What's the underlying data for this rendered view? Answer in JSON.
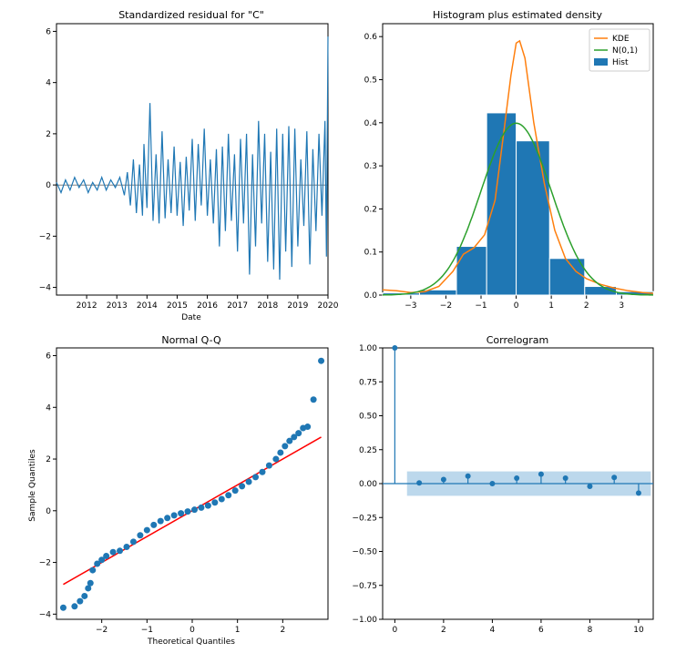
{
  "colors": {
    "blue": "#1f77b4",
    "orange": "#ff7f0e",
    "green": "#2ca02c",
    "red": "#ff0000",
    "band": "#a6cbe6"
  },
  "chart_data": [
    {
      "id": "residual",
      "type": "line",
      "title": "Standardized residual for \"C\"",
      "xlabel": "Date",
      "ylabel": "",
      "xlim": [
        2011.0,
        2020.0
      ],
      "ylim": [
        -4.3,
        6.3
      ],
      "xticks": [
        2012,
        2013,
        2014,
        2015,
        2016,
        2017,
        2018,
        2019,
        2020
      ],
      "yticks": [
        -4,
        -2,
        0,
        2,
        4,
        6
      ],
      "series": [
        {
          "x": [
            2011.0,
            2011.15,
            2011.3,
            2011.45,
            2011.6,
            2011.75,
            2011.9,
            2012.05,
            2012.2,
            2012.35,
            2012.5,
            2012.65,
            2012.8,
            2012.95,
            2013.1,
            2013.25,
            2013.35,
            2013.45,
            2013.55,
            2013.65,
            2013.75,
            2013.85,
            2013.9,
            2014.0,
            2014.1,
            2014.2,
            2014.3,
            2014.4,
            2014.5,
            2014.6,
            2014.7,
            2014.8,
            2014.9,
            2015.0,
            2015.1,
            2015.2,
            2015.3,
            2015.4,
            2015.5,
            2015.6,
            2015.7,
            2015.8,
            2015.9,
            2016.0,
            2016.1,
            2016.2,
            2016.3,
            2016.4,
            2016.5,
            2016.6,
            2016.7,
            2016.8,
            2016.9,
            2017.0,
            2017.1,
            2017.2,
            2017.3,
            2017.4,
            2017.5,
            2017.6,
            2017.7,
            2017.8,
            2017.9,
            2018.0,
            2018.1,
            2018.2,
            2018.3,
            2018.4,
            2018.5,
            2018.6,
            2018.7,
            2018.8,
            2018.9,
            2019.0,
            2019.1,
            2019.2,
            2019.3,
            2019.4,
            2019.5,
            2019.6,
            2019.7,
            2019.8,
            2019.9,
            2019.95,
            2020.0
          ],
          "y": [
            0.1,
            -0.3,
            0.2,
            -0.2,
            0.3,
            -0.1,
            0.2,
            -0.3,
            0.1,
            -0.2,
            0.3,
            -0.2,
            0.2,
            -0.1,
            0.3,
            -0.4,
            0.5,
            -0.8,
            1.0,
            -1.1,
            0.8,
            -1.2,
            1.6,
            -0.9,
            3.2,
            -1.4,
            1.2,
            -1.5,
            2.1,
            -1.3,
            1.0,
            -1.1,
            1.5,
            -1.2,
            0.9,
            -1.6,
            1.1,
            -1.0,
            1.8,
            -1.4,
            1.6,
            -0.8,
            2.2,
            -1.2,
            1.0,
            -1.5,
            1.4,
            -2.4,
            1.5,
            -1.8,
            2.0,
            -1.4,
            1.2,
            -2.6,
            1.8,
            -1.5,
            2.0,
            -3.5,
            1.2,
            -2.4,
            2.5,
            -1.5,
            2.0,
            -3.0,
            1.3,
            -3.3,
            2.2,
            -3.7,
            2.0,
            -2.6,
            2.3,
            -3.2,
            2.2,
            -2.4,
            1.0,
            -1.6,
            2.1,
            -3.1,
            1.4,
            -1.8,
            2.0,
            -1.2,
            2.5,
            -2.8,
            5.8
          ]
        }
      ]
    },
    {
      "id": "histogram",
      "type": "bar",
      "title": "Histogram plus estimated density",
      "xlim": [
        -3.8,
        3.9
      ],
      "ylim": [
        0,
        0.63
      ],
      "xticks": [
        -3,
        -2,
        -1,
        0,
        1,
        2,
        3
      ],
      "yticks": [
        0.0,
        0.1,
        0.2,
        0.3,
        0.4,
        0.5,
        0.6
      ],
      "legend": {
        "position": "top-right",
        "entries": [
          "KDE",
          "N(0,1)",
          "Hist"
        ]
      },
      "bars": {
        "edges": [
          -3.8,
          -2.75,
          -1.7,
          -0.84,
          0.0,
          0.95,
          1.95,
          2.85,
          3.9
        ],
        "heights": [
          0.005,
          0.012,
          0.113,
          0.423,
          0.358,
          0.085,
          0.02,
          0.008
        ]
      },
      "kde": {
        "name": "KDE",
        "x": [
          -3.8,
          -3.4,
          -3.0,
          -2.6,
          -2.2,
          -1.8,
          -1.5,
          -1.2,
          -0.9,
          -0.6,
          -0.35,
          -0.15,
          0.0,
          0.1,
          0.25,
          0.5,
          0.8,
          1.1,
          1.4,
          1.7,
          2.0,
          2.4,
          2.8,
          3.2,
          3.6,
          3.9
        ],
        "y": [
          0.012,
          0.01,
          0.006,
          0.008,
          0.02,
          0.055,
          0.095,
          0.11,
          0.14,
          0.22,
          0.38,
          0.51,
          0.585,
          0.59,
          0.55,
          0.4,
          0.26,
          0.15,
          0.085,
          0.055,
          0.038,
          0.025,
          0.016,
          0.01,
          0.006,
          0.004
        ]
      },
      "normal": {
        "name": "N(0,1)",
        "mean": 0,
        "std": 1
      }
    },
    {
      "id": "qq",
      "type": "scatter",
      "title": "Normal Q-Q",
      "xlabel": "Theoretical Quantiles",
      "ylabel": "Sample Quantiles",
      "xlim": [
        -3.0,
        3.0
      ],
      "ylim": [
        -4.2,
        6.3
      ],
      "xticks": [
        -2,
        -1,
        0,
        1,
        2
      ],
      "yticks": [
        -4,
        -2,
        0,
        2,
        4,
        6
      ],
      "points": {
        "x": [
          -2.85,
          -2.6,
          -2.48,
          -2.38,
          -2.3,
          -2.25,
          -2.2,
          -2.1,
          -2.0,
          -1.9,
          -1.75,
          -1.6,
          -1.45,
          -1.3,
          -1.15,
          -1.0,
          -0.85,
          -0.7,
          -0.55,
          -0.4,
          -0.25,
          -0.1,
          0.05,
          0.2,
          0.35,
          0.5,
          0.65,
          0.8,
          0.95,
          1.1,
          1.25,
          1.4,
          1.55,
          1.7,
          1.85,
          1.95,
          2.05,
          2.15,
          2.25,
          2.35,
          2.45,
          2.55,
          2.68,
          2.85
        ],
        "y": [
          -3.75,
          -3.7,
          -3.5,
          -3.3,
          -3.0,
          -2.8,
          -2.3,
          -2.05,
          -1.9,
          -1.75,
          -1.6,
          -1.55,
          -1.4,
          -1.2,
          -0.95,
          -0.75,
          -0.55,
          -0.4,
          -0.28,
          -0.18,
          -0.1,
          -0.03,
          0.04,
          0.12,
          0.2,
          0.32,
          0.45,
          0.6,
          0.78,
          0.95,
          1.12,
          1.3,
          1.5,
          1.75,
          2.0,
          2.25,
          2.5,
          2.7,
          2.85,
          3.0,
          3.2,
          3.25,
          4.3,
          5.8
        ]
      },
      "reference_line": {
        "slope": 1,
        "intercept": 0
      }
    },
    {
      "id": "correlogram",
      "type": "scatter",
      "title": "Correlogram",
      "xlim": [
        -0.5,
        10.6
      ],
      "ylim": [
        -1.0,
        1.0
      ],
      "xticks": [
        0,
        2,
        4,
        6,
        8,
        10
      ],
      "yticks": [
        -1.0,
        -0.75,
        -0.5,
        -0.25,
        0.0,
        0.25,
        0.5,
        0.75,
        1.0
      ],
      "lags": [
        0,
        1,
        2,
        3,
        4,
        5,
        6,
        7,
        8,
        9,
        10
      ],
      "acf": [
        1.0,
        0.005,
        0.03,
        0.055,
        0.0,
        0.04,
        0.07,
        0.04,
        -0.02,
        0.045,
        -0.07
      ],
      "confidence_band": {
        "lower": -0.09,
        "upper": 0.09,
        "x": [
          0.5,
          10.5
        ]
      }
    }
  ]
}
